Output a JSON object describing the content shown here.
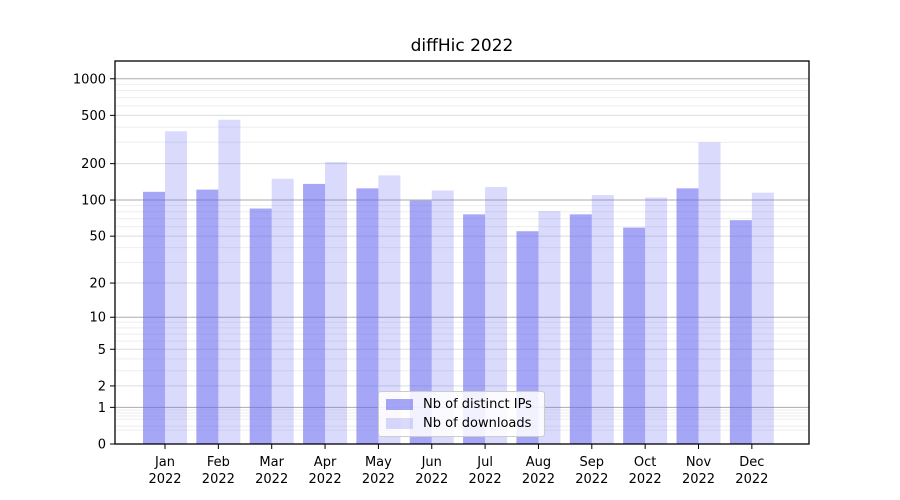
{
  "colors": {
    "bar_ips": "rgba(97,97,240,0.56)",
    "bar_downloads": "rgba(97,97,240,0.23)",
    "grid_decade": "#ababab",
    "grid_labeled": "#dcdcdc",
    "grid_minor": "#eeeeee",
    "axis": "#000000",
    "text": "#000000",
    "legend_border": "#cccccc",
    "legend_bg": "rgba(255,255,255,0.85)"
  },
  "chart_data": {
    "type": "bar",
    "title": "diffHic 2022",
    "scale": "log1p",
    "categories": [
      "Jan",
      "Feb",
      "Mar",
      "Apr",
      "May",
      "Jun",
      "Jul",
      "Aug",
      "Sep",
      "Oct",
      "Nov",
      "Dec"
    ],
    "year": "2022",
    "series": [
      {
        "name": "Nb of distinct IPs",
        "values": [
          117,
          122,
          85,
          136,
          125,
          99,
          76,
          55,
          76,
          59,
          125,
          68
        ]
      },
      {
        "name": "Nb of downloads",
        "values": [
          370,
          460,
          150,
          206,
          160,
          120,
          128,
          81,
          110,
          105,
          300,
          115
        ]
      }
    ],
    "yticks": [
      0,
      1,
      2,
      5,
      10,
      20,
      50,
      100,
      200,
      500,
      1000
    ],
    "ylim": [
      0,
      1400
    ],
    "grid": true,
    "legend_position": "lower center"
  }
}
